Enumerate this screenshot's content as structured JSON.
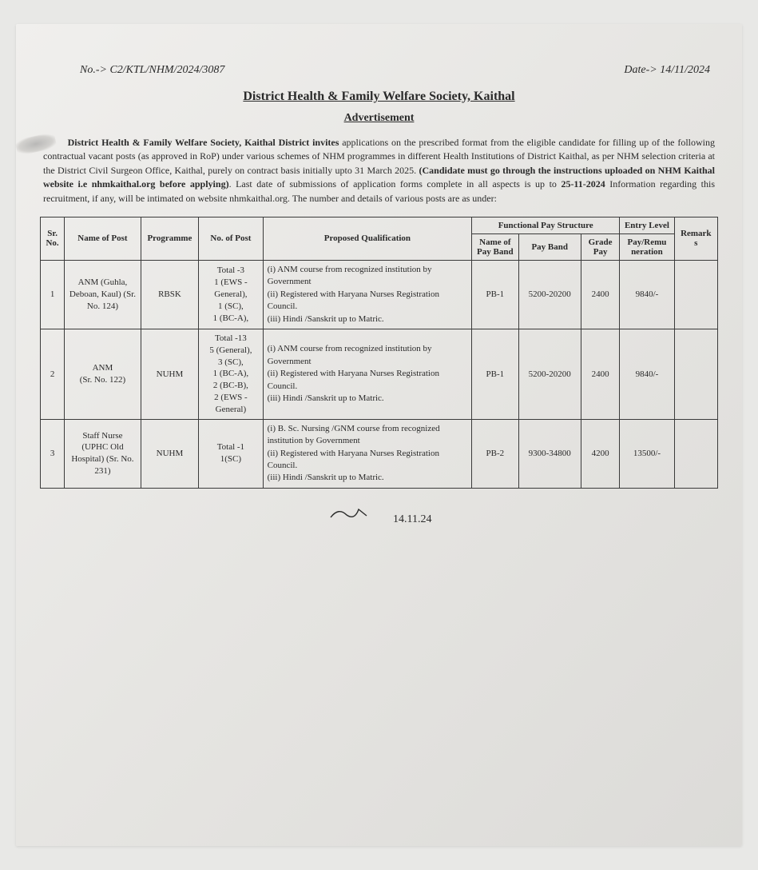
{
  "handwritten": {
    "ref_no": "No.-> C2/KTL/NHM/2024/3087",
    "date": "Date-> 14/11/2024"
  },
  "header": {
    "title": "District Health & Family Welfare Society, Kaithal",
    "subtitle": "Advertisement"
  },
  "body": {
    "para_prefix": "District Health & Family Welfare Society, Kaithal District invites",
    "para_mid1": " applications on the prescribed format from the eligible candidate for filling up of the following contractual vacant posts (as approved in RoP) under various schemes of NHM programmes in different Health Institutions of District Kaithal, as per NHM selection criteria at the District Civil Surgeon Office, Kaithal, purely on contract basis initially upto 31 March 2025. ",
    "para_bold2": "(Candidate must go through the instructions uploaded on NHM Kaithal website i.e nhmkaithal.org before applying)",
    "para_mid2": ". Last date of submissions of application forms complete in all aspects is up to ",
    "para_bold3": "25-11-2024",
    "para_end": " Information regarding this recruitment, if any, will be intimated on website nhmkaithal.org. The number and details of various posts are as under:"
  },
  "table": {
    "headers": {
      "srno": "Sr. No.",
      "post": "Name of Post",
      "programme": "Programme",
      "nopost": "No. of Post",
      "qualification": "Proposed Qualification",
      "functional_pay": "Functional Pay Structure",
      "payband_name": "Name of Pay Band",
      "payband": "Pay Band",
      "grade": "Grade Pay",
      "entry_level": "Entry Level",
      "entry_sub": "Pay/Remu neration",
      "remark": "Remark s"
    },
    "rows": [
      {
        "srno": "1",
        "post": "ANM (Guhla, Deboan, Kaul) (Sr. No. 124)",
        "programme": "RBSK",
        "nopost": "Total -3\n1 (EWS - General),\n1 (SC),\n1 (BC-A),",
        "qualification": "(i) ANM course from recognized institution by Government\n(ii) Registered with Haryana Nurses Registration Council.\n(iii) Hindi /Sanskrit up to Matric.",
        "payband_name": "PB-1",
        "payband": "5200-20200",
        "grade": "2400",
        "entry": "9840/-",
        "remark": ""
      },
      {
        "srno": "2",
        "post": "ANM\n(Sr. No. 122)",
        "programme": "NUHM",
        "nopost": "Total -13\n5 (General),\n3 (SC),\n1 (BC-A),\n2 (BC-B),\n2 (EWS - General)",
        "qualification": "(i) ANM course from recognized institution by Government\n(ii) Registered with Haryana Nurses Registration Council.\n(iii) Hindi /Sanskrit up to Matric.",
        "payband_name": "PB-1",
        "payband": "5200-20200",
        "grade": "2400",
        "entry": "9840/-",
        "remark": ""
      },
      {
        "srno": "3",
        "post": "Staff Nurse (UPHC Old Hospital) (Sr. No. 231)",
        "programme": "NUHM",
        "nopost": "Total -1\n1(SC)",
        "qualification": "(i) B. Sc. Nursing /GNM course from recognized institution by Government\n(ii) Registered with Haryana Nurses Registration Council.\n(iii) Hindi /Sanskrit up to Matric.",
        "payband_name": "PB-2",
        "payband": "9300-34800",
        "grade": "4200",
        "entry": "13500/-",
        "remark": ""
      }
    ]
  },
  "signature": "14.11.24",
  "style": {
    "page_bg": "#e8e8e6",
    "text_color": "#2a2a2a",
    "border_color": "#3a3a3a",
    "body_fontsize": 12,
    "table_fontsize": 11,
    "title_fontsize": 16
  }
}
